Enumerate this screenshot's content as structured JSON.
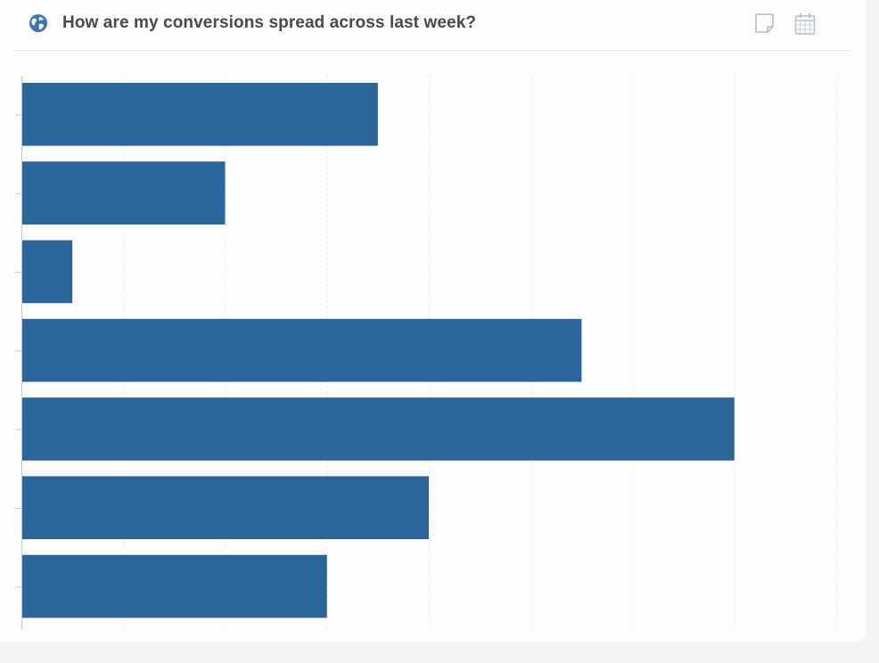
{
  "header": {
    "title": "How are my conversions spread across last week?",
    "globe_icon": "globe-icon",
    "note_icon": "note-icon",
    "calendar_icon": "calendar-icon"
  },
  "colors": {
    "bar": "#2a659c",
    "grid": "#eeeeee",
    "axis": "#c8c8c8",
    "title": "#4a4a4a",
    "globe": "#3d74b3"
  },
  "chart_data": {
    "type": "bar",
    "orientation": "horizontal",
    "categories": [
      "",
      "",
      "",
      "",
      "",
      "",
      ""
    ],
    "values": [
      35,
      20,
      5,
      55,
      70,
      40,
      30
    ],
    "xlim": [
      0,
      80
    ],
    "grid": true,
    "title": "How are my conversions spread across last week?",
    "xlabel": "",
    "ylabel": ""
  }
}
